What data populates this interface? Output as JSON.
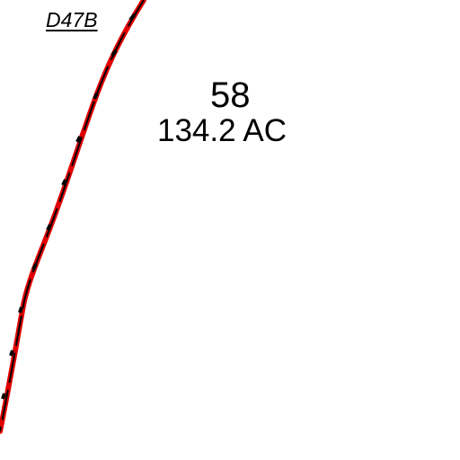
{
  "map": {
    "tract_label": "D47B",
    "parcel": {
      "number": "58",
      "area": "134.2 AC"
    },
    "colors": {
      "background": "#ffffff",
      "boundary_line": "#e00000",
      "boundary_dash": "#000000",
      "text": "#000000"
    }
  }
}
